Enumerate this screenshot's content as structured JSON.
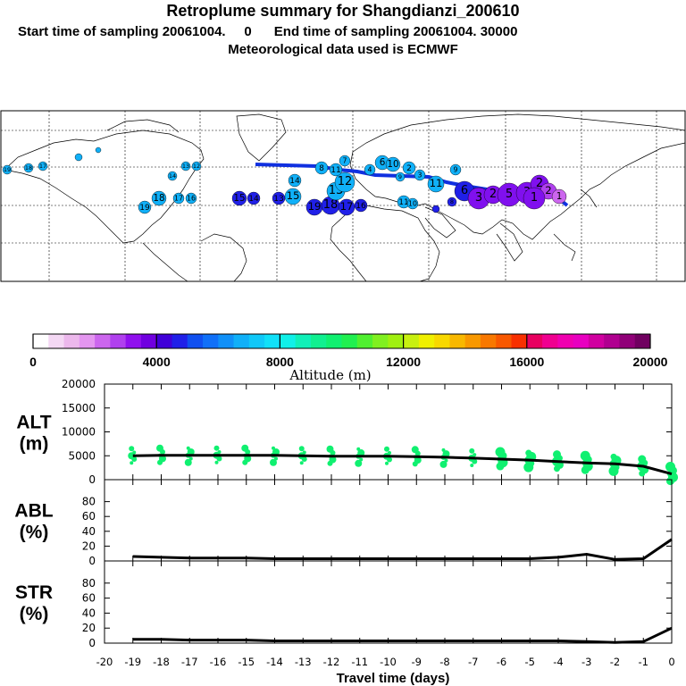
{
  "header": {
    "title": "Retroplume summary for Shangdianzi_200610",
    "subtitle": "Start time of sampling 20061004.     0      End time of sampling 20061004. 30000",
    "met_note": "Meteorological data used is ECMWF"
  },
  "colorbar": {
    "label": "Altitude (m)",
    "ticks": [
      "0",
      "4000",
      "8000",
      "12000",
      "16000",
      "20000"
    ],
    "colors": [
      "#ffffff",
      "#f4d8f4",
      "#ecb8ec",
      "#e496f0",
      "#cc66ee",
      "#b040ee",
      "#9010ee",
      "#7000e0",
      "#4000d8",
      "#2020e8",
      "#1050f0",
      "#1070f8",
      "#1090f8",
      "#10b0f8",
      "#10c8f8",
      "#10e0f8",
      "#10f0e8",
      "#10f0b8",
      "#10f090",
      "#10f070",
      "#20f050",
      "#50f030",
      "#80f020",
      "#a0f010",
      "#c8f010",
      "#f0f000",
      "#f8d800",
      "#f8b800",
      "#f89800",
      "#f87800",
      "#f85800",
      "#f83000",
      "#e80060",
      "#f00090",
      "#f000b0",
      "#e800c0",
      "#d000a0",
      "#b00090",
      "#900078",
      "#700060"
    ]
  },
  "map": {
    "labels": [
      "19",
      "18",
      "17",
      "16",
      "15",
      "14",
      "13",
      "12",
      "11",
      "10",
      "9",
      "8",
      "7",
      "6",
      "5",
      "4",
      "3",
      "2",
      "1"
    ]
  },
  "chart_data": [
    {
      "type": "line",
      "panel": "ALT",
      "ylabel": "ALT\n(m)",
      "ylabel_lines": [
        "ALT",
        "(m)"
      ],
      "ylim": [
        0,
        20000
      ],
      "yticks": [
        "0",
        "5000",
        "10000",
        "15000",
        "20000"
      ],
      "x": [
        -19,
        -18,
        -17,
        -16,
        -15,
        -14,
        -13,
        -12,
        -11,
        -10,
        -9,
        -8,
        -7,
        -6,
        -5,
        -4,
        -3,
        -2,
        -1,
        0
      ],
      "values": [
        5000,
        5100,
        5100,
        5100,
        5100,
        5100,
        5000,
        4900,
        4900,
        4900,
        4800,
        4700,
        4500,
        4300,
        4100,
        3800,
        3500,
        3300,
        2800,
        1200
      ]
    },
    {
      "type": "line",
      "panel": "ABL",
      "ylabel_lines": [
        "ABL",
        "(%)"
      ],
      "ylim": [
        0,
        100
      ],
      "yticks": [
        "0",
        "20",
        "40",
        "60",
        "80"
      ],
      "x": [
        -19,
        -18,
        -17,
        -16,
        -15,
        -14,
        -13,
        -12,
        -11,
        -10,
        -9,
        -8,
        -7,
        -6,
        -5,
        -4,
        -3,
        -2,
        -1,
        0
      ],
      "values": [
        6,
        5,
        4,
        4,
        4,
        3,
        3,
        3,
        3,
        3,
        3,
        3,
        3,
        3,
        3,
        5,
        9,
        2,
        3,
        29
      ]
    },
    {
      "type": "line",
      "panel": "STR",
      "ylabel_lines": [
        "STR",
        "(%)"
      ],
      "ylim": [
        0,
        100
      ],
      "yticks": [
        "0",
        "20",
        "40",
        "60",
        "80"
      ],
      "x": [
        -19,
        -18,
        -17,
        -16,
        -15,
        -14,
        -13,
        -12,
        -11,
        -10,
        -9,
        -8,
        -7,
        -6,
        -5,
        -4,
        -3,
        -2,
        -1,
        0
      ],
      "values": [
        5,
        5,
        4,
        4,
        4,
        3,
        3,
        3,
        3,
        3,
        3,
        3,
        3,
        3,
        3,
        3,
        2,
        1,
        2,
        20
      ]
    }
  ],
  "xaxis": {
    "label": "Travel time (days)",
    "ticks": [
      "-20",
      "-19",
      "-18",
      "-17",
      "-16",
      "-15",
      "-14",
      "-13",
      "-12",
      "-11",
      "-10",
      "-9",
      "-8",
      "-7",
      "-6",
      "-5",
      "-4",
      "-3",
      "-2",
      "-1",
      "0"
    ]
  }
}
